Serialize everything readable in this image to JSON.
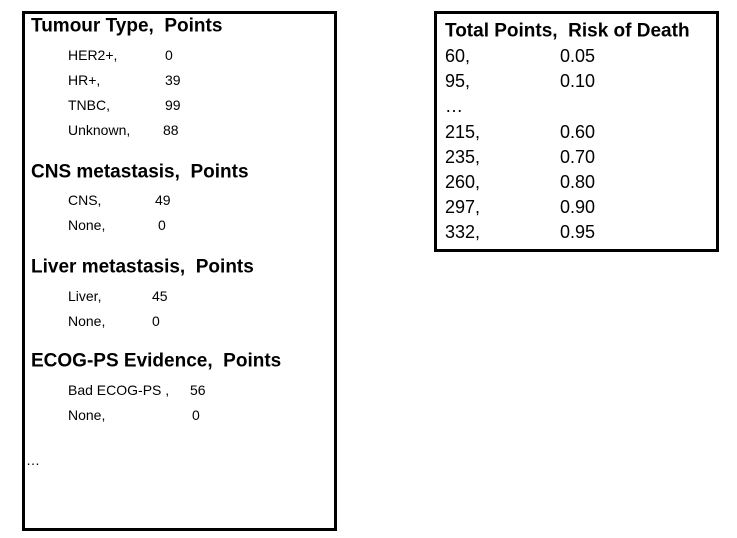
{
  "left": {
    "sections": [
      {
        "title": "Tumour Type,  Points",
        "rows": [
          {
            "label": "HER2+,",
            "points": "0"
          },
          {
            "label": "HR+,",
            "points": "39"
          },
          {
            "label": "TNBC,",
            "points": "99"
          },
          {
            "label": "Unknown,",
            "points": "88"
          }
        ]
      },
      {
        "title": "CNS metastasis,  Points",
        "rows": [
          {
            "label": "CNS,",
            "points": "49"
          },
          {
            "label": "None,",
            "points": "0"
          }
        ]
      },
      {
        "title": "Liver metastasis,  Points",
        "rows": [
          {
            "label": "Liver,",
            "points": "45"
          },
          {
            "label": "None,",
            "points": "0"
          }
        ]
      },
      {
        "title": "ECOG-PS Evidence,  Points",
        "rows": [
          {
            "label": "Bad ECOG-PS ,",
            "points": "56"
          },
          {
            "label": "None,",
            "points": "0"
          }
        ]
      }
    ],
    "ellipsis": "…"
  },
  "right": {
    "header": "Total Points,  Risk of Death",
    "rows": [
      {
        "points": "60,",
        "risk": "0.05"
      },
      {
        "points": "95,",
        "risk": "0.10"
      },
      {
        "points": "…"
      },
      {
        "points": "215,",
        "risk": "0.60"
      },
      {
        "points": "235,",
        "risk": "0.70"
      },
      {
        "points": "260,",
        "risk": "0.80"
      },
      {
        "points": "297,",
        "risk": "0.90"
      },
      {
        "points": "332,",
        "risk": "0.95"
      }
    ]
  }
}
